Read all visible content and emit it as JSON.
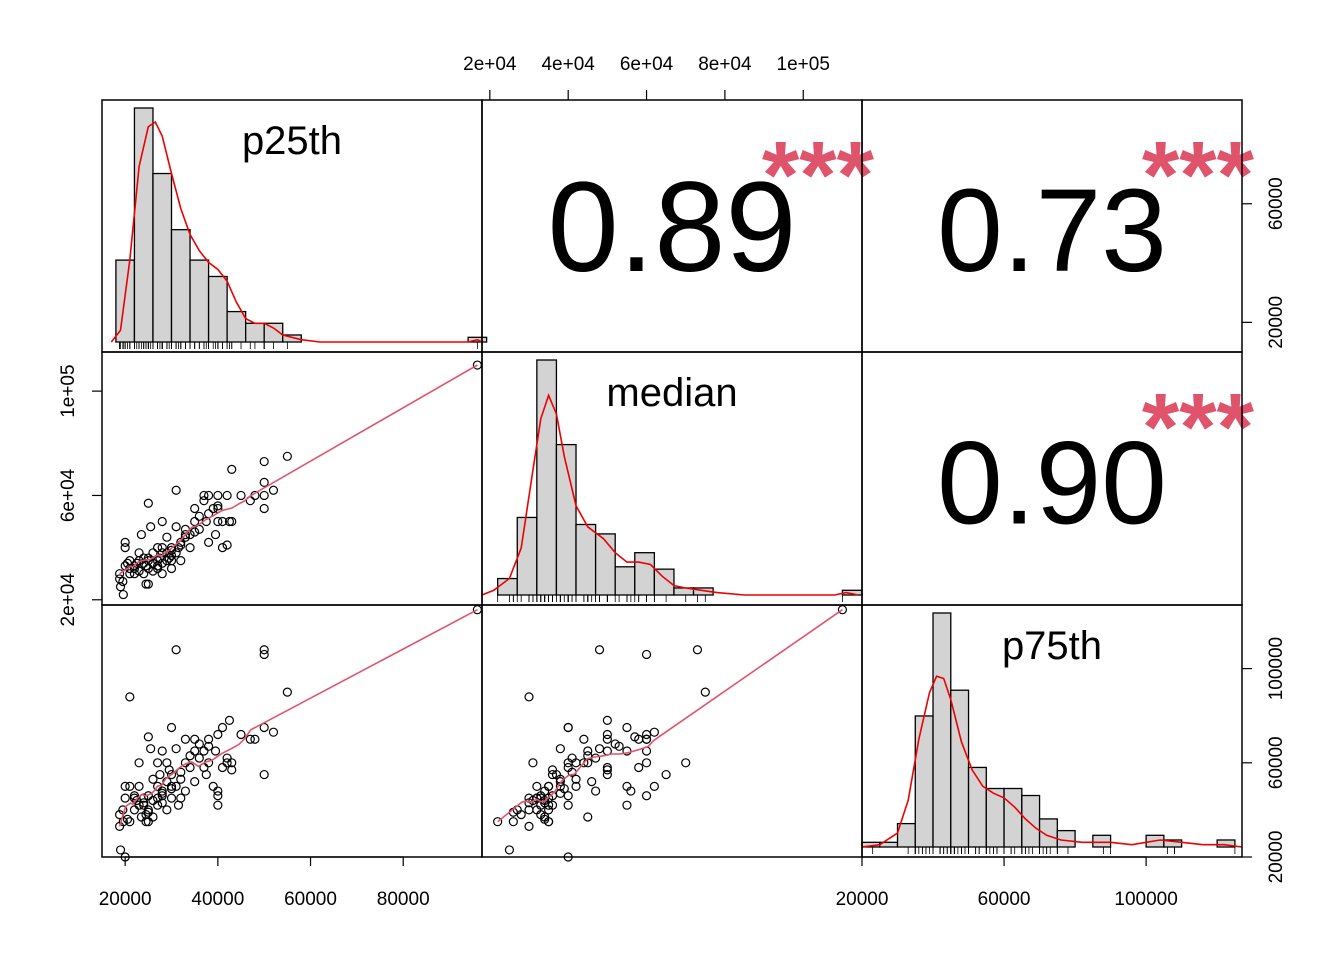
{
  "chart_data": {
    "type": "scatter",
    "variables": [
      "p25th",
      "median",
      "p75th"
    ],
    "correlations": [
      {
        "row": 0,
        "col": 1,
        "value": "0.89",
        "stars": "***"
      },
      {
        "row": 0,
        "col": 2,
        "value": "0.73",
        "stars": "***"
      },
      {
        "row": 1,
        "col": 2,
        "value": "0.90",
        "stars": "***"
      }
    ],
    "ranges": {
      "p25th": [
        15000,
        97000
      ],
      "median": [
        18000,
        115000
      ],
      "p75th": [
        20000,
        127000
      ]
    },
    "ticks": {
      "p25th_bottom": {
        "values": [
          20000,
          40000,
          60000,
          80000
        ],
        "labels": [
          "20000",
          "40000",
          "60000",
          "80000"
        ]
      },
      "median_top": {
        "values": [
          20000,
          40000,
          60000,
          80000,
          100000
        ],
        "labels": [
          "2e+04",
          "4e+04",
          "6e+04",
          "8e+04",
          "1e+05"
        ]
      },
      "median_left": {
        "values": [
          20000,
          60000,
          100000
        ],
        "labels": [
          "2e+04",
          "6e+04",
          "1e+05"
        ]
      },
      "p25th_right": {
        "values": [
          20000,
          60000
        ],
        "labels": [
          "20000",
          "60000"
        ]
      },
      "p75th_bottom": {
        "values": [
          20000,
          60000,
          100000
        ],
        "labels": [
          "20000",
          "60000",
          "100000"
        ]
      },
      "p75th_right": {
        "values": [
          20000,
          60000,
          100000
        ],
        "labels": [
          "20000",
          "60000",
          "100000"
        ]
      }
    },
    "histograms": {
      "p25th": {
        "bins": [
          [
            18000,
            22000,
            0.35
          ],
          [
            22000,
            26000,
            1.0
          ],
          [
            26000,
            30000,
            0.72
          ],
          [
            30000,
            34000,
            0.48
          ],
          [
            34000,
            38000,
            0.35
          ],
          [
            38000,
            42000,
            0.28
          ],
          [
            42000,
            46000,
            0.13
          ],
          [
            46000,
            50000,
            0.08
          ],
          [
            50000,
            54000,
            0.08
          ],
          [
            54000,
            58000,
            0.03
          ],
          [
            94000,
            98000,
            0.02
          ]
        ],
        "density": [
          [
            17000,
            0.0
          ],
          [
            19000,
            0.05
          ],
          [
            21000,
            0.35
          ],
          [
            23000,
            0.75
          ],
          [
            25000,
            0.92
          ],
          [
            26500,
            0.94
          ],
          [
            28000,
            0.88
          ],
          [
            30000,
            0.72
          ],
          [
            32000,
            0.57
          ],
          [
            34000,
            0.46
          ],
          [
            36000,
            0.39
          ],
          [
            38000,
            0.34
          ],
          [
            40000,
            0.31
          ],
          [
            42000,
            0.26
          ],
          [
            44000,
            0.17
          ],
          [
            46000,
            0.1
          ],
          [
            48000,
            0.08
          ],
          [
            50000,
            0.08
          ],
          [
            52000,
            0.06
          ],
          [
            54000,
            0.03
          ],
          [
            58000,
            0.01
          ],
          [
            62000,
            0.0
          ],
          [
            94000,
            0.0
          ],
          [
            96000,
            0.01
          ],
          [
            97000,
            0.0
          ]
        ]
      },
      "median": {
        "bins": [
          [
            22000,
            27000,
            0.07
          ],
          [
            27000,
            32000,
            0.33
          ],
          [
            32000,
            37000,
            1.0
          ],
          [
            37000,
            42000,
            0.64
          ],
          [
            42000,
            47000,
            0.3
          ],
          [
            47000,
            52000,
            0.26
          ],
          [
            52000,
            57000,
            0.12
          ],
          [
            57000,
            62000,
            0.18
          ],
          [
            62000,
            67000,
            0.11
          ],
          [
            67000,
            72000,
            0.03
          ],
          [
            72000,
            77000,
            0.03
          ],
          [
            110000,
            115000,
            0.02
          ]
        ],
        "density": [
          [
            18000,
            0.0
          ],
          [
            21000,
            0.02
          ],
          [
            25000,
            0.07
          ],
          [
            28000,
            0.2
          ],
          [
            31000,
            0.53
          ],
          [
            33000,
            0.75
          ],
          [
            35000,
            0.85
          ],
          [
            37000,
            0.77
          ],
          [
            39000,
            0.59
          ],
          [
            42000,
            0.38
          ],
          [
            45000,
            0.29
          ],
          [
            49000,
            0.24
          ],
          [
            52000,
            0.18
          ],
          [
            55000,
            0.14
          ],
          [
            58000,
            0.14
          ],
          [
            61000,
            0.13
          ],
          [
            64000,
            0.08
          ],
          [
            67000,
            0.04
          ],
          [
            70000,
            0.03
          ],
          [
            74000,
            0.02
          ],
          [
            78000,
            0.01
          ],
          [
            85000,
            0.0
          ],
          [
            108000,
            0.0
          ],
          [
            111000,
            0.01
          ],
          [
            114000,
            0.0
          ]
        ]
      },
      "p75th": {
        "bins": [
          [
            20000,
            25000,
            0.02
          ],
          [
            25000,
            30000,
            0.02
          ],
          [
            30000,
            35000,
            0.1
          ],
          [
            35000,
            40000,
            0.56
          ],
          [
            40000,
            45000,
            1.0
          ],
          [
            45000,
            50000,
            0.67
          ],
          [
            50000,
            55000,
            0.34
          ],
          [
            55000,
            60000,
            0.25
          ],
          [
            60000,
            65000,
            0.25
          ],
          [
            65000,
            70000,
            0.22
          ],
          [
            70000,
            75000,
            0.12
          ],
          [
            75000,
            80000,
            0.07
          ],
          [
            85000,
            90000,
            0.05
          ],
          [
            100000,
            105000,
            0.05
          ],
          [
            105000,
            110000,
            0.03
          ],
          [
            120000,
            125000,
            0.03
          ]
        ],
        "density": [
          [
            20000,
            0.0
          ],
          [
            25000,
            0.01
          ],
          [
            30000,
            0.06
          ],
          [
            33000,
            0.2
          ],
          [
            36000,
            0.46
          ],
          [
            39000,
            0.66
          ],
          [
            41000,
            0.73
          ],
          [
            43000,
            0.72
          ],
          [
            45000,
            0.63
          ],
          [
            48000,
            0.45
          ],
          [
            51000,
            0.33
          ],
          [
            54000,
            0.26
          ],
          [
            57000,
            0.23
          ],
          [
            60000,
            0.21
          ],
          [
            63000,
            0.17
          ],
          [
            66000,
            0.12
          ],
          [
            69000,
            0.08
          ],
          [
            72000,
            0.05
          ],
          [
            76000,
            0.03
          ],
          [
            82000,
            0.02
          ],
          [
            90000,
            0.02
          ],
          [
            96000,
            0.01
          ],
          [
            100000,
            0.02
          ],
          [
            104000,
            0.03
          ],
          [
            110000,
            0.02
          ],
          [
            116000,
            0.01
          ],
          [
            122000,
            0.01
          ],
          [
            127000,
            0.0
          ]
        ]
      }
    },
    "points": [
      [
        18800,
        30000,
        33000
      ],
      [
        18800,
        28000,
        38000
      ],
      [
        19000,
        25000,
        23000
      ],
      [
        19500,
        27000,
        40000
      ],
      [
        19600,
        22000,
        35000
      ],
      [
        20000,
        40000,
        20000
      ],
      [
        20000,
        42000,
        50000
      ],
      [
        20000,
        33000,
        45000
      ],
      [
        20500,
        34000,
        36000
      ],
      [
        21000,
        30000,
        88000
      ],
      [
        21000,
        35000,
        35000
      ],
      [
        21000,
        32000,
        50000
      ],
      [
        22000,
        32000,
        45000
      ],
      [
        22000,
        30000,
        40000
      ],
      [
        22000,
        33000,
        46000
      ],
      [
        22500,
        34000,
        44000
      ],
      [
        23000,
        38000,
        50000
      ],
      [
        23000,
        31000,
        60000
      ],
      [
        23000,
        35000,
        42000
      ],
      [
        23500,
        45000,
        37000
      ],
      [
        24000,
        34000,
        43000
      ],
      [
        24000,
        30000,
        45000
      ],
      [
        24000,
        36000,
        42000
      ],
      [
        24500,
        26000,
        35000
      ],
      [
        24500,
        33000,
        38000
      ],
      [
        25000,
        32000,
        40000
      ],
      [
        25000,
        36000,
        46000
      ],
      [
        25000,
        57000,
        71000
      ],
      [
        25000,
        26000,
        39000
      ],
      [
        25000,
        35000,
        35000
      ],
      [
        25500,
        48000,
        66000
      ],
      [
        26000,
        38000,
        53000
      ],
      [
        26000,
        34000,
        37000
      ],
      [
        26000,
        31000,
        44000
      ],
      [
        27000,
        35000,
        50000
      ],
      [
        27000,
        40000,
        60000
      ],
      [
        27000,
        33000,
        42000
      ],
      [
        27000,
        32000,
        45000
      ],
      [
        27500,
        36000,
        55000
      ],
      [
        28000,
        34000,
        48000
      ],
      [
        28000,
        30000,
        43000
      ],
      [
        28000,
        38000,
        47000
      ],
      [
        28000,
        50000,
        65000
      ],
      [
        28000,
        40000,
        46000
      ],
      [
        29000,
        44000,
        60000
      ],
      [
        29000,
        38000,
        52000
      ],
      [
        29000,
        35000,
        40000
      ],
      [
        29500,
        36000,
        57000
      ],
      [
        30000,
        40000,
        75000
      ],
      [
        30000,
        35000,
        50000
      ],
      [
        30000,
        37000,
        55000
      ],
      [
        30000,
        32000,
        45000
      ],
      [
        30000,
        39000,
        49000
      ],
      [
        31000,
        38000,
        66000
      ],
      [
        31000,
        48000,
        108000
      ],
      [
        31000,
        62000,
        50000
      ],
      [
        31500,
        40000,
        42000
      ],
      [
        32000,
        41000,
        56000
      ],
      [
        32000,
        35000,
        45000
      ],
      [
        32000,
        42000,
        53000
      ],
      [
        33000,
        44000,
        70000
      ],
      [
        33000,
        45000,
        60000
      ],
      [
        33000,
        47000,
        48000
      ],
      [
        34000,
        40000,
        58000
      ],
      [
        34000,
        45000,
        63000
      ],
      [
        35000,
        50000,
        70000
      ],
      [
        35000,
        55000,
        65000
      ],
      [
        35000,
        46000,
        52000
      ],
      [
        36000,
        47000,
        62000
      ],
      [
        36000,
        52000,
        68000
      ],
      [
        37000,
        60000,
        65000
      ],
      [
        37000,
        58000,
        58000
      ],
      [
        37500,
        50000,
        55000
      ],
      [
        38000,
        53000,
        67000
      ],
      [
        38000,
        60000,
        70000
      ],
      [
        38000,
        42000,
        60000
      ],
      [
        39000,
        55000,
        50000
      ],
      [
        39500,
        45000,
        65000
      ],
      [
        40000,
        50000,
        72000
      ],
      [
        40000,
        60000,
        46000
      ],
      [
        40000,
        55000,
        42000
      ],
      [
        40000,
        56000,
        48000
      ],
      [
        41000,
        50000,
        58000
      ],
      [
        41000,
        40000,
        75000
      ],
      [
        42000,
        60000,
        60000
      ],
      [
        42000,
        41000,
        62000
      ],
      [
        42500,
        50000,
        78000
      ],
      [
        43000,
        70000,
        60000
      ],
      [
        43000,
        50000,
        57000
      ],
      [
        45000,
        60000,
        72000
      ],
      [
        47000,
        58000,
        70000
      ],
      [
        48000,
        60000,
        70000
      ],
      [
        50000,
        73000,
        108000
      ],
      [
        50000,
        60000,
        106000
      ],
      [
        50000,
        65000,
        55000
      ],
      [
        50000,
        55000,
        75000
      ],
      [
        52000,
        62000,
        73000
      ],
      [
        55000,
        75000,
        90000
      ],
      [
        96000,
        110000,
        125000
      ]
    ]
  }
}
